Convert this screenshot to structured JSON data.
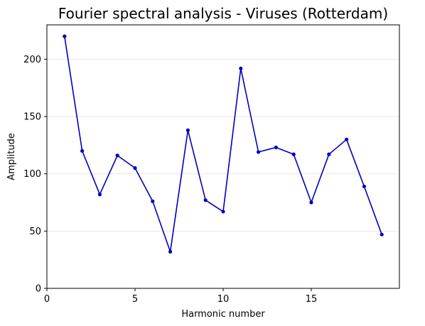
{
  "chart_data": {
    "type": "line",
    "title": "Fourier spectral analysis - Viruses (Rotterdam)",
    "xlabel": "Harmonic number",
    "ylabel": "Amplitude",
    "xlim": [
      0,
      20
    ],
    "ylim": [
      0,
      230
    ],
    "xticks": [
      0,
      5,
      10,
      15
    ],
    "yticks": [
      0,
      50,
      100,
      150,
      200
    ],
    "grid": "y",
    "series": [
      {
        "color": "#0000bb",
        "x": [
          1,
          2,
          3,
          4,
          5,
          6,
          7,
          8,
          9,
          10,
          11,
          12,
          13,
          14,
          15,
          16,
          17,
          18,
          19
        ],
        "y": [
          220,
          120,
          82,
          116,
          105,
          76,
          32,
          138,
          77,
          67,
          192,
          119,
          123,
          117,
          75,
          117,
          130,
          89,
          47
        ]
      }
    ]
  }
}
